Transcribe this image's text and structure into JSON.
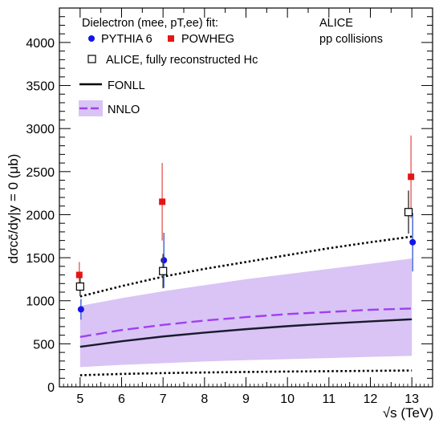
{
  "chart_data": {
    "type": "scatter",
    "title": "",
    "xlabel": "√s (TeV)",
    "ylabel": "dσcc̄/dy|y = 0 (μb)",
    "xlim": [
      4.5,
      13.5
    ],
    "ylim": [
      0,
      4400
    ],
    "x_ticks": [
      5,
      6,
      7,
      8,
      9,
      10,
      11,
      12,
      13
    ],
    "y_ticks": [
      0,
      500,
      1000,
      1500,
      2000,
      2500,
      3000,
      3500,
      4000
    ],
    "grid": false,
    "annotations": [
      "ALICE",
      "pp collisions"
    ],
    "legend_header": "Dielectron (mee, pT,ee) fit:",
    "legend_placement": "top-left",
    "series": [
      {
        "name": "PYTHIA 6",
        "kind": "points",
        "marker": "circle",
        "color": "#1515e6",
        "points": [
          {
            "x": 5.02,
            "y": 900,
            "err": 120
          },
          {
            "x": 7.02,
            "y": 1470,
            "err": 320
          },
          {
            "x": 13.02,
            "y": 1680,
            "err": 340
          }
        ]
      },
      {
        "name": "POWHEG",
        "kind": "points",
        "marker": "square",
        "color": "#e61515",
        "points": [
          {
            "x": 4.98,
            "y": 1300,
            "err": 150
          },
          {
            "x": 6.98,
            "y": 2150,
            "err": 450
          },
          {
            "x": 12.98,
            "y": 2440,
            "err": 480
          }
        ]
      },
      {
        "name": "ALICE, fully reconstructed Hc",
        "kind": "points",
        "marker": "open-square",
        "color": "#000000",
        "points": [
          {
            "x": 5.0,
            "y": 1165,
            "err": 110
          },
          {
            "x": 7.0,
            "y": 1345,
            "err": 200
          },
          {
            "x": 12.92,
            "y": 2030,
            "err": 250
          }
        ]
      },
      {
        "name": "FONLL",
        "kind": "line",
        "color": "#1a1a2e",
        "x": [
          5,
          6,
          7,
          8,
          9,
          10,
          11,
          12,
          13
        ],
        "y": [
          465,
          530,
          585,
          630,
          670,
          705,
          735,
          760,
          785
        ],
        "lower": [
          135,
          150,
          160,
          167,
          173,
          178,
          182,
          186,
          190
        ],
        "upper": [
          1050,
          1170,
          1280,
          1370,
          1450,
          1530,
          1610,
          1680,
          1745
        ]
      },
      {
        "name": "NNLO",
        "kind": "band",
        "color": "#a040f0",
        "band_color": "#d9c4f5",
        "x": [
          5,
          6,
          7,
          8,
          9,
          10,
          11,
          12,
          13
        ],
        "y": [
          580,
          660,
          720,
          770,
          810,
          845,
          870,
          895,
          910
        ],
        "lower": [
          230,
          255,
          275,
          295,
          310,
          322,
          335,
          348,
          360
        ],
        "upper": [
          940,
          1030,
          1110,
          1180,
          1250,
          1310,
          1370,
          1430,
          1490
        ]
      }
    ]
  }
}
